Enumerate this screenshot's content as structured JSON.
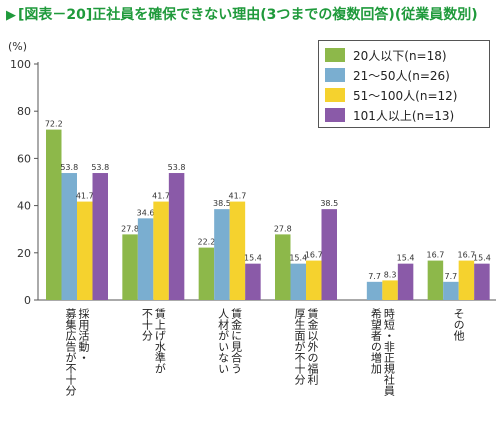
{
  "title": {
    "marker": "▶",
    "text": "[図表－20]正社員を確保できない理由(3つまでの複数回答)(従業員数別)"
  },
  "chart_data": {
    "type": "bar",
    "ylabel": "(%)",
    "ylim": [
      0,
      100
    ],
    "yticks": [
      0,
      20,
      40,
      60,
      80,
      100
    ],
    "grid": false,
    "legend_position": "top-right",
    "categories": [
      "採用活動・\n募集広告が不十分",
      "賃上げ水準が\n不十分",
      "賃金に見合う\n人材がいない",
      "賃金以外の福利\n厚生面が不十分",
      "時短・非正規社員\n希望者の増加",
      "その他"
    ],
    "series": [
      {
        "name": "20人以下(n=18)",
        "color": "#8db84a",
        "values": [
          72.2,
          27.8,
          22.2,
          27.8,
          null,
          16.7
        ]
      },
      {
        "name": "21～50人(n=26)",
        "color": "#7aaed0",
        "values": [
          53.8,
          34.6,
          38.5,
          15.4,
          7.7,
          7.7
        ]
      },
      {
        "name": "51～100人(n=12)",
        "color": "#f5d22e",
        "values": [
          41.7,
          41.7,
          41.7,
          16.7,
          8.3,
          16.7
        ]
      },
      {
        "name": "101人以上(n=13)",
        "color": "#8a5aa8",
        "values": [
          53.8,
          53.8,
          15.4,
          38.5,
          15.4,
          15.4
        ]
      }
    ]
  }
}
